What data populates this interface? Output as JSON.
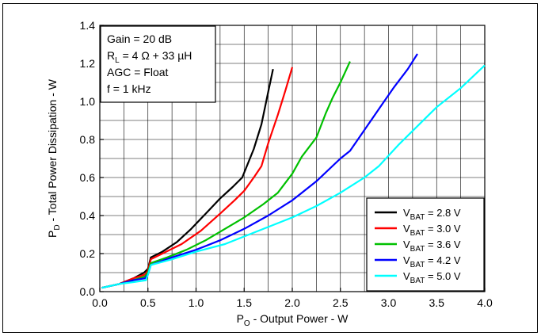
{
  "chart_data": {
    "type": "line",
    "title": "",
    "xlabel": {
      "main": "P",
      "sub": "O",
      "rest": " - Output Power - W"
    },
    "ylabel": {
      "main": "P",
      "sub": "D",
      "rest": " - Total Power Dissipation - W"
    },
    "xlim": [
      0,
      4
    ],
    "ylim": [
      0,
      1.4
    ],
    "xticks": [
      0,
      0.5,
      1,
      1.5,
      2,
      2.5,
      3,
      3.5,
      4
    ],
    "xtick_labels": [
      "0.0",
      "0.5",
      "1.0",
      "1.5",
      "2.0",
      "2.5",
      "3.0",
      "3.5",
      "4.0"
    ],
    "xminor_step": 0.25,
    "yticks": [
      0,
      0.2,
      0.4,
      0.6,
      0.8,
      1.0,
      1.2,
      1.4
    ],
    "ytick_labels": [
      "0.0",
      "0.2",
      "0.4",
      "0.6",
      "0.8",
      "1.0",
      "1.2",
      "1.4"
    ],
    "yminor_step": 0.1,
    "grid": true,
    "legend_position": "bottom-right",
    "annotations": [
      {
        "main": "Gain = 20 dB"
      },
      {
        "main": "R",
        "sub": "L",
        "rest": " = 4 Ω + 33 µH"
      },
      {
        "main": "AGC = Float"
      },
      {
        "main": "f = 1 kHz"
      }
    ],
    "series": [
      {
        "name": {
          "main": "V",
          "sub": "BAT",
          "rest": " = 2.8 V"
        },
        "color": "#000000",
        "points": [
          [
            0.02,
            0.02
          ],
          [
            0.2,
            0.04
          ],
          [
            0.35,
            0.07
          ],
          [
            0.46,
            0.1
          ],
          [
            0.5,
            0.12
          ],
          [
            0.53,
            0.18
          ],
          [
            0.65,
            0.21
          ],
          [
            0.8,
            0.26
          ],
          [
            0.95,
            0.33
          ],
          [
            1.1,
            0.41
          ],
          [
            1.25,
            0.49
          ],
          [
            1.38,
            0.55
          ],
          [
            1.48,
            0.6
          ],
          [
            1.6,
            0.75
          ],
          [
            1.68,
            0.88
          ],
          [
            1.75,
            1.05
          ],
          [
            1.8,
            1.17
          ]
        ]
      },
      {
        "name": {
          "main": "V",
          "sub": "BAT",
          "rest": " = 3.0 V"
        },
        "color": "#ff0000",
        "points": [
          [
            0.02,
            0.02
          ],
          [
            0.2,
            0.04
          ],
          [
            0.35,
            0.07
          ],
          [
            0.47,
            0.09
          ],
          [
            0.5,
            0.11
          ],
          [
            0.53,
            0.17
          ],
          [
            0.65,
            0.2
          ],
          [
            0.85,
            0.25
          ],
          [
            1.05,
            0.32
          ],
          [
            1.25,
            0.41
          ],
          [
            1.4,
            0.48
          ],
          [
            1.5,
            0.53
          ],
          [
            1.6,
            0.6
          ],
          [
            1.68,
            0.66
          ],
          [
            1.75,
            0.78
          ],
          [
            1.85,
            0.93
          ],
          [
            1.93,
            1.06
          ],
          [
            2.0,
            1.18
          ]
        ]
      },
      {
        "name": {
          "main": "V",
          "sub": "BAT",
          "rest": " = 3.6 V"
        },
        "color": "#00c000",
        "points": [
          [
            0.02,
            0.02
          ],
          [
            0.2,
            0.04
          ],
          [
            0.35,
            0.06
          ],
          [
            0.47,
            0.08
          ],
          [
            0.5,
            0.1
          ],
          [
            0.53,
            0.15
          ],
          [
            0.7,
            0.18
          ],
          [
            0.9,
            0.22
          ],
          [
            1.1,
            0.27
          ],
          [
            1.3,
            0.33
          ],
          [
            1.5,
            0.39
          ],
          [
            1.7,
            0.46
          ],
          [
            1.85,
            0.52
          ],
          [
            2.0,
            0.62
          ],
          [
            2.1,
            0.71
          ],
          [
            2.25,
            0.81
          ],
          [
            2.35,
            0.94
          ],
          [
            2.42,
            1.02
          ],
          [
            2.5,
            1.1
          ],
          [
            2.6,
            1.21
          ]
        ]
      },
      {
        "name": {
          "main": "V",
          "sub": "BAT",
          "rest": " = 4.2 V"
        },
        "color": "#0000ff",
        "points": [
          [
            0.02,
            0.02
          ],
          [
            0.2,
            0.04
          ],
          [
            0.35,
            0.06
          ],
          [
            0.47,
            0.07
          ],
          [
            0.5,
            0.09
          ],
          [
            0.53,
            0.14
          ],
          [
            0.75,
            0.18
          ],
          [
            1.0,
            0.22
          ],
          [
            1.25,
            0.27
          ],
          [
            1.5,
            0.33
          ],
          [
            1.75,
            0.4
          ],
          [
            2.0,
            0.48
          ],
          [
            2.25,
            0.58
          ],
          [
            2.5,
            0.7
          ],
          [
            2.6,
            0.74
          ],
          [
            2.75,
            0.85
          ],
          [
            2.9,
            0.96
          ],
          [
            3.05,
            1.07
          ],
          [
            3.2,
            1.17
          ],
          [
            3.3,
            1.25
          ]
        ]
      },
      {
        "name": {
          "main": "V",
          "sub": "BAT",
          "rest": " = 5.0 V"
        },
        "color": "#00ffff",
        "points": [
          [
            0.02,
            0.02
          ],
          [
            0.2,
            0.04
          ],
          [
            0.35,
            0.05
          ],
          [
            0.48,
            0.06
          ],
          [
            0.5,
            0.09
          ],
          [
            0.53,
            0.14
          ],
          [
            0.75,
            0.17
          ],
          [
            1.0,
            0.21
          ],
          [
            1.3,
            0.25
          ],
          [
            1.55,
            0.3
          ],
          [
            1.8,
            0.35
          ],
          [
            2.0,
            0.39
          ],
          [
            2.25,
            0.45
          ],
          [
            2.5,
            0.52
          ],
          [
            2.75,
            0.6
          ],
          [
            2.9,
            0.66
          ],
          [
            3.1,
            0.77
          ],
          [
            3.3,
            0.87
          ],
          [
            3.5,
            0.97
          ],
          [
            3.75,
            1.07
          ],
          [
            4.0,
            1.19
          ]
        ]
      }
    ]
  }
}
